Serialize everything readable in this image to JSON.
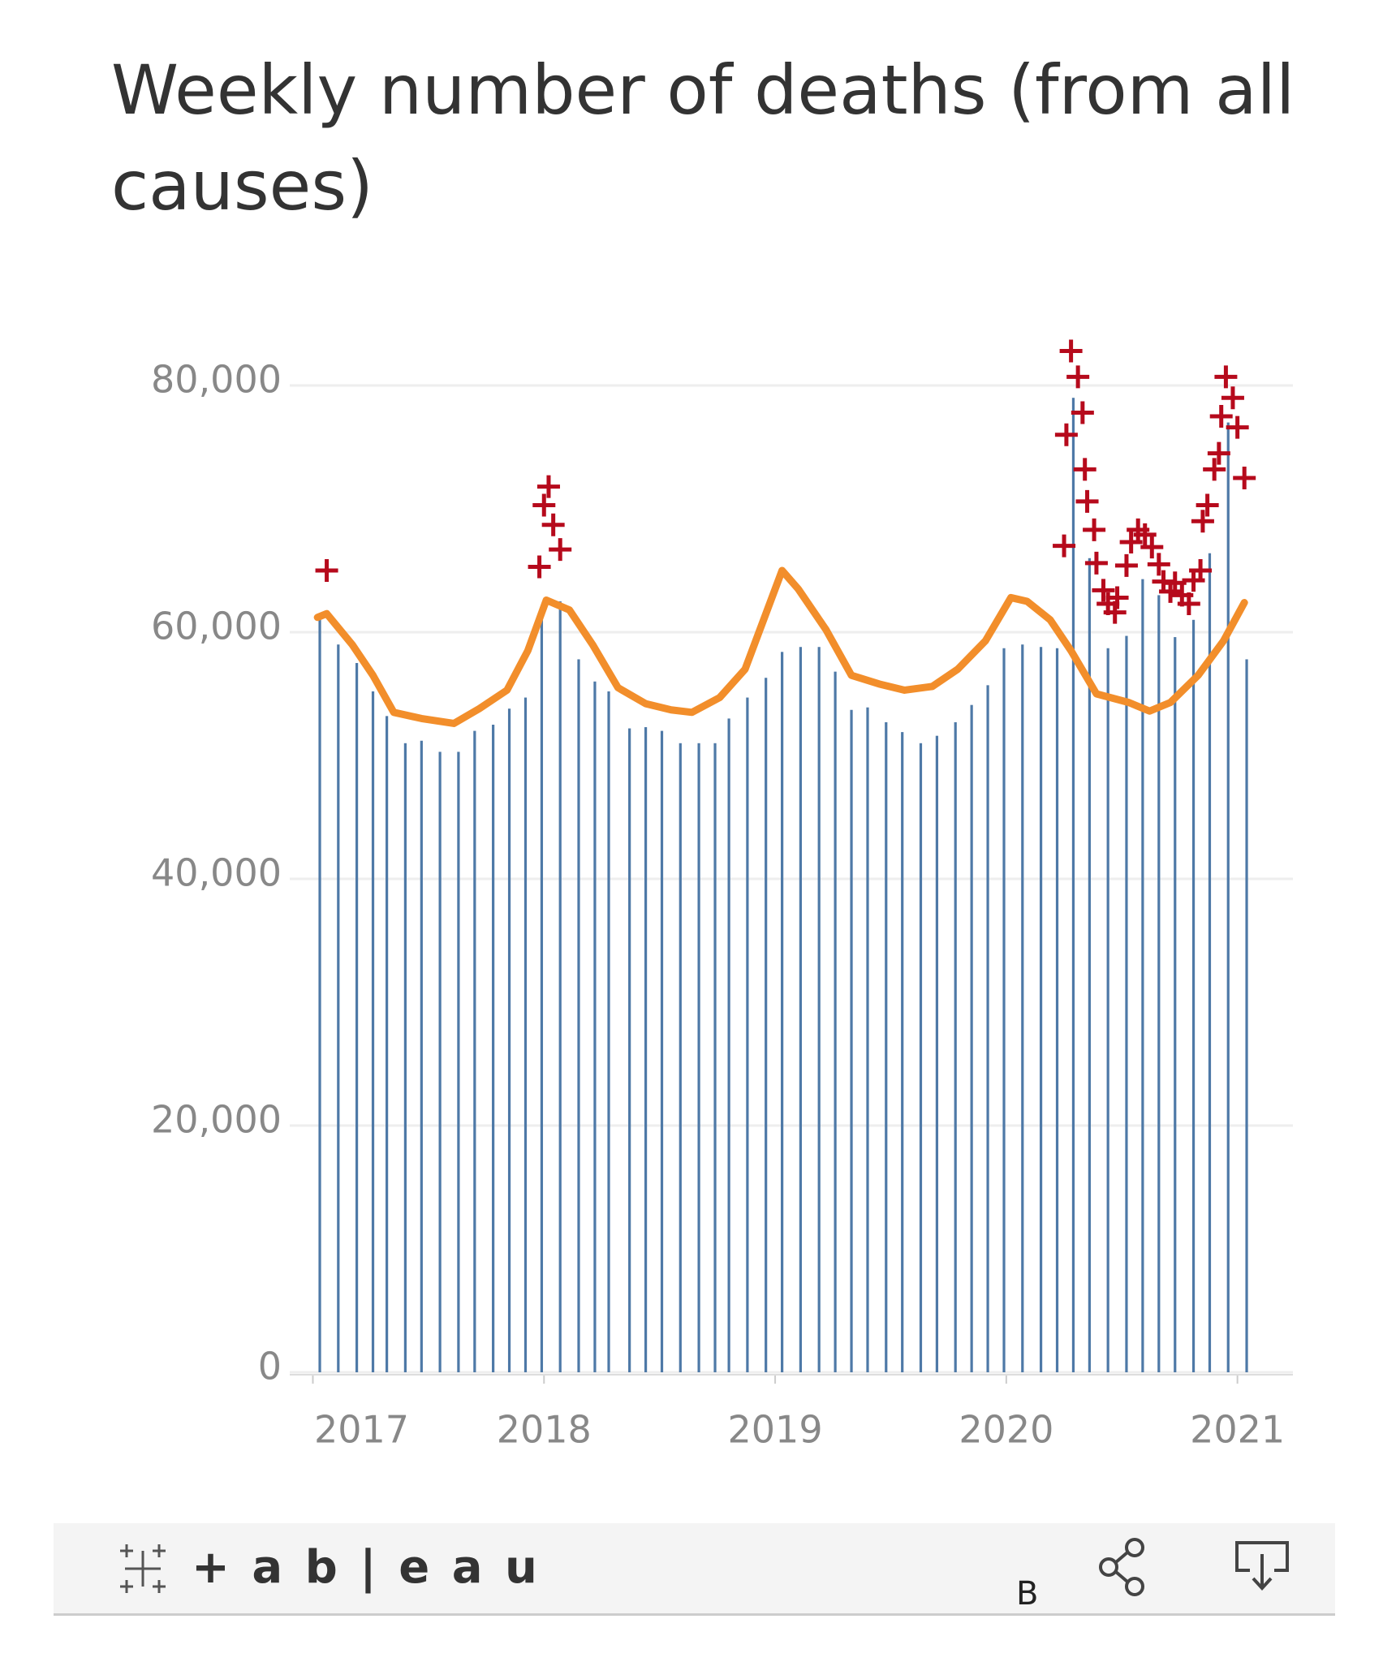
{
  "chart_data": {
    "type": "combo",
    "title": "Weekly number of deaths (from all causes)",
    "xlim": [
      2016.9,
      2021.24
    ],
    "xticks": [
      2017,
      2018,
      2019,
      2020,
      2021
    ],
    "ylim": [
      0,
      85000
    ],
    "yticks": [
      0,
      {
        "value": 20000,
        "label": "20,000"
      },
      {
        "value": 40000,
        "label": "40,000"
      },
      {
        "value": 60000,
        "label": "60,000"
      },
      {
        "value": 80000,
        "label": "80,000"
      }
    ],
    "grid": true,
    "series": [
      {
        "type": "bar",
        "color": "#4e79a7",
        "x": [
          2017.03,
          2017.11,
          2017.19,
          2017.26,
          2017.32,
          2017.4,
          2017.47,
          2017.55,
          2017.63,
          2017.7,
          2017.78,
          2017.85,
          2017.92,
          2017.99,
          2018.07,
          2018.15,
          2018.22,
          2018.28,
          2018.37,
          2018.44,
          2018.51,
          2018.59,
          2018.67,
          2018.74,
          2018.8,
          2018.88,
          2018.96,
          2019.03,
          2019.11,
          2019.19,
          2019.26,
          2019.33,
          2019.4,
          2019.48,
          2019.55,
          2019.63,
          2019.7,
          2019.78,
          2019.85,
          2019.92,
          2019.99,
          2020.07,
          2020.15,
          2020.22,
          2020.29,
          2020.36,
          2020.44,
          2020.52,
          2020.59,
          2020.66,
          2020.73,
          2020.81,
          2020.88,
          2020.96,
          2021.04
        ],
        "values": [
          61000,
          59000,
          57500,
          55200,
          53200,
          51000,
          51200,
          50300,
          50300,
          52000,
          52500,
          53800,
          54700,
          62000,
          62500,
          57800,
          56000,
          55200,
          52200,
          52300,
          52000,
          51000,
          51000,
          51000,
          53000,
          54700,
          56300,
          58400,
          58800,
          58800,
          56800,
          53700,
          53900,
          52700,
          51900,
          51000,
          51600,
          52700,
          54100,
          55700,
          58700,
          59000,
          58800,
          58700,
          79000,
          66000,
          58700,
          59700,
          64300,
          63000,
          59600,
          61000,
          66400,
          77000,
          57800
        ]
      },
      {
        "type": "line",
        "color": "#f28e2b",
        "x": [
          2017.02,
          2017.06,
          2017.17,
          2017.26,
          2017.35,
          2017.47,
          2017.61,
          2017.72,
          2017.84,
          2017.93,
          2018.01,
          2018.11,
          2018.21,
          2018.32,
          2018.44,
          2018.55,
          2018.64,
          2018.76,
          2018.87,
          2018.96,
          2019.03,
          2019.1,
          2019.22,
          2019.33,
          2019.45,
          2019.56,
          2019.68,
          2019.79,
          2019.91,
          2020.02,
          2020.09,
          2020.19,
          2020.28,
          2020.39,
          2020.53,
          2020.62,
          2020.71,
          2020.83,
          2020.94,
          2021.03
        ],
        "values": [
          61200,
          61500,
          59000,
          56500,
          53500,
          53000,
          52600,
          53800,
          55300,
          58500,
          62600,
          61800,
          59000,
          55500,
          54200,
          53700,
          53500,
          54700,
          57000,
          61500,
          65000,
          63500,
          60200,
          56500,
          55800,
          55300,
          55600,
          57000,
          59300,
          62800,
          62500,
          61000,
          58500,
          55000,
          54300,
          53600,
          54300,
          56500,
          59300,
          62400
        ]
      },
      {
        "type": "scatter",
        "color": "#b60a1c",
        "x": [
          2017.06,
          2017.98,
          2018.0,
          2018.02,
          2018.04,
          2018.07,
          2020.25,
          2020.26,
          2020.28,
          2020.31,
          2020.33,
          2020.34,
          2020.35,
          2020.38,
          2020.39,
          2020.42,
          2020.44,
          2020.47,
          2020.48,
          2020.52,
          2020.54,
          2020.57,
          2020.6,
          2020.63,
          2020.66,
          2020.68,
          2020.71,
          2020.73,
          2020.76,
          2020.79,
          2020.81,
          2020.84,
          2020.85,
          2020.87,
          2020.9,
          2020.92,
          2020.93,
          2020.95,
          2020.98,
          2021.0,
          2021.03
        ],
        "values": [
          65000,
          65300,
          70300,
          71800,
          68700,
          66700,
          67000,
          76000,
          82800,
          80700,
          77800,
          73200,
          70600,
          68300,
          65600,
          63400,
          62300,
          61600,
          62800,
          65400,
          67300,
          68300,
          67900,
          66900,
          65500,
          64100,
          63300,
          64000,
          63000,
          62300,
          64200,
          65000,
          69000,
          70300,
          73200,
          74500,
          77500,
          80700,
          79000,
          76600,
          72500
        ]
      }
    ]
  },
  "footer": {
    "logo": "+ a b | e a u",
    "label": "B"
  }
}
